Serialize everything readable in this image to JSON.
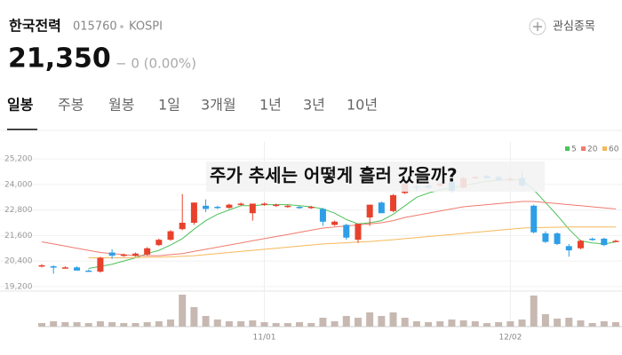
{
  "header": {
    "name": "한국전력",
    "code": "015760",
    "market": "KOSPI",
    "watch": "관심종목",
    "price": "21,350",
    "change": "− 0 (0.00%)"
  },
  "tabs": [
    "일봉",
    "주봉",
    "월봉",
    "1일",
    "3개월",
    "1년",
    "3년",
    "10년"
  ],
  "chart_data": {
    "type": "candlestick",
    "title": "주가 추세는 어떻게 흘러 갔을까?",
    "categories": [
      null,
      null,
      null,
      null,
      null,
      null,
      null,
      null,
      null,
      null,
      null,
      null,
      null,
      null,
      null,
      null,
      null,
      null,
      null,
      "11/01",
      null,
      null,
      null,
      null,
      null,
      null,
      null,
      null,
      null,
      null,
      null,
      null,
      null,
      null,
      null,
      null,
      null,
      null,
      null,
      null,
      "12/02",
      null,
      null,
      null,
      null,
      null,
      null,
      null,
      null,
      null
    ],
    "open": [
      20200,
      20150,
      20100,
      20100,
      19950,
      19900,
      20800,
      20650,
      20650,
      20700,
      21150,
      21400,
      21900,
      22200,
      23000,
      22950,
      22900,
      23050,
      22650,
      23050,
      23000,
      22950,
      22950,
      22900,
      22850,
      22100,
      22100,
      21400,
      22450,
      23150,
      22750,
      23600,
      23900,
      23950,
      23950,
      24100,
      23850,
      24300,
      24400,
      24350,
      24250,
      24300,
      23000,
      21700,
      21700,
      21100,
      21000,
      21450,
      21450,
      21350
    ],
    "high": [
      20250,
      20200,
      20150,
      20150,
      20000,
      20600,
      20950,
      20750,
      20800,
      21050,
      21450,
      21850,
      23550,
      23150,
      23300,
      23000,
      23100,
      23150,
      23100,
      23150,
      23100,
      23050,
      23000,
      23000,
      22900,
      22300,
      22150,
      22150,
      23050,
      23200,
      23550,
      24100,
      24000,
      24000,
      24100,
      24150,
      24350,
      24400,
      24450,
      24400,
      24350,
      24600,
      23050,
      21800,
      21750,
      21200,
      21400,
      21500,
      21500,
      21400
    ],
    "low": [
      20100,
      19800,
      20050,
      19950,
      19900,
      19850,
      20500,
      20600,
      20600,
      20650,
      21100,
      21350,
      21850,
      22100,
      22700,
      22850,
      22850,
      23000,
      22300,
      23000,
      22950,
      22900,
      22850,
      22850,
      22050,
      22050,
      21400,
      21250,
      22050,
      22650,
      22700,
      23550,
      23700,
      23800,
      23900,
      23650,
      23800,
      24250,
      24250,
      24150,
      24200,
      23900,
      21700,
      21250,
      21150,
      20600,
      20950,
      21350,
      21100,
      21300
    ],
    "close": [
      20200,
      20100,
      20100,
      19950,
      19900,
      20550,
      20650,
      20700,
      20750,
      21000,
      21400,
      21800,
      22200,
      23150,
      22850,
      22900,
      23050,
      23100,
      23100,
      23100,
      23050,
      23000,
      22900,
      22950,
      22250,
      22250,
      21500,
      22150,
      23050,
      22650,
      23500,
      24050,
      23850,
      23850,
      24050,
      23700,
      24300,
      24350,
      24300,
      24200,
      24250,
      23950,
      21750,
      21300,
      21200,
      20900,
      21350,
      21400,
      21150,
      21350
    ],
    "volume": [
      4,
      6,
      5,
      5,
      4,
      6,
      5,
      4,
      4,
      5,
      6,
      8,
      36,
      22,
      12,
      8,
      6,
      6,
      7,
      5,
      4,
      4,
      5,
      4,
      10,
      6,
      12,
      10,
      16,
      12,
      16,
      10,
      6,
      5,
      6,
      8,
      7,
      6,
      4,
      5,
      6,
      8,
      35,
      14,
      9,
      10,
      7,
      4,
      6,
      5
    ],
    "up_color": "#e8412c",
    "down_color": "#2e9ee6",
    "volume_color": "#c7b9b2",
    "series": [
      {
        "name": "5",
        "color": "#4cc25a",
        "values": [
          null,
          null,
          null,
          null,
          20050,
          20150,
          20250,
          20400,
          20550,
          20750,
          20900,
          21150,
          21450,
          21900,
          22300,
          22600,
          22800,
          23000,
          23000,
          23050,
          23050,
          23050,
          23000,
          22950,
          22850,
          22650,
          22350,
          22150,
          22200,
          22300,
          22600,
          23000,
          23400,
          23600,
          23750,
          23850,
          23950,
          24050,
          24150,
          24200,
          24250,
          24200,
          23750,
          23150,
          22550,
          21900,
          21350,
          21250,
          21200,
          21300
        ]
      },
      {
        "name": "20",
        "color": "#f07a6e",
        "values": [
          21300,
          21200,
          21100,
          21000,
          20900,
          20800,
          20750,
          20700,
          20650,
          20650,
          20650,
          20700,
          20750,
          20850,
          20950,
          21050,
          21150,
          21250,
          21350,
          21450,
          21550,
          21650,
          21750,
          21850,
          21950,
          22000,
          22050,
          22100,
          22150,
          22200,
          22300,
          22450,
          22550,
          22650,
          22750,
          22850,
          22950,
          23000,
          23050,
          23100,
          23150,
          23200,
          23200,
          23150,
          23100,
          23050,
          23000,
          22950,
          22900,
          22850
        ]
      },
      {
        "name": "60",
        "color": "#f6b95a",
        "values": [
          null,
          null,
          null,
          null,
          20550,
          20550,
          20550,
          20550,
          20560,
          20570,
          20580,
          20600,
          20620,
          20650,
          20700,
          20750,
          20800,
          20850,
          20900,
          20950,
          21000,
          21050,
          21100,
          21150,
          21200,
          21230,
          21260,
          21290,
          21320,
          21360,
          21400,
          21450,
          21500,
          21550,
          21600,
          21650,
          21700,
          21750,
          21800,
          21850,
          21900,
          21950,
          21970,
          21980,
          21990,
          22000,
          22000,
          22000,
          22000,
          22000
        ]
      }
    ],
    "ylim": [
      18900,
      26000
    ],
    "yticks": [
      {
        "value": 25200,
        "label": "25,200"
      },
      {
        "value": 24000,
        "label": "24,000"
      },
      {
        "value": 22800,
        "label": "22,800"
      },
      {
        "value": 21600,
        "label": "21,600"
      },
      {
        "value": 20400,
        "label": "20,400"
      },
      {
        "value": 19200,
        "label": "19,200"
      }
    ],
    "grid": true
  }
}
